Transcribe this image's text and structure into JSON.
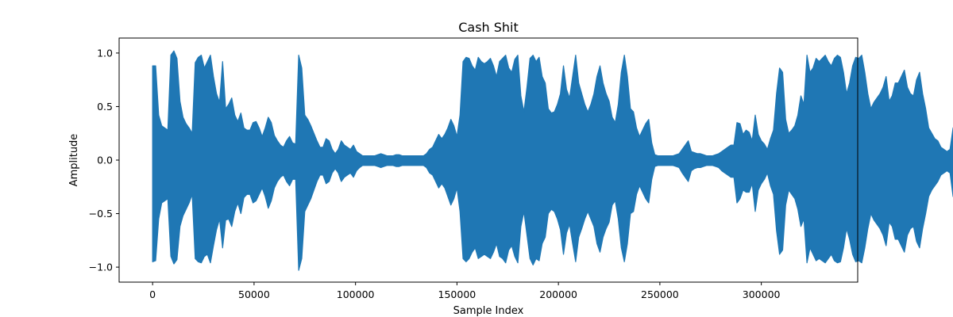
{
  "chart_data": {
    "type": "line",
    "title": "Cash Shit",
    "xlabel": "Sample Index",
    "ylabel": "Amplitude",
    "xlim": [
      -16500,
      347500
    ],
    "ylim": [
      -1.14,
      1.14
    ],
    "xticks": [
      0,
      50000,
      100000,
      150000,
      200000,
      250000,
      300000
    ],
    "xtick_labels": [
      "0",
      "50000",
      "100000",
      "150000",
      "200000",
      "250000",
      "300000"
    ],
    "yticks": [
      -1.0,
      -0.5,
      0.0,
      0.5,
      1.0
    ],
    "ytick_labels": [
      "−1.0",
      "−0.5",
      "0.0",
      "0.5",
      "1.0"
    ],
    "grid": false,
    "legend": "none",
    "series": [
      {
        "color": "#1f77b4",
        "x_start": 0,
        "x_step": 1500,
        "max": [
          0.88,
          0.88,
          0.42,
          0.32,
          0.3,
          0.28,
          0.98,
          1.02,
          0.95,
          0.55,
          0.4,
          0.34,
          0.3,
          0.25,
          0.91,
          0.96,
          0.98,
          0.86,
          0.92,
          0.98,
          0.78,
          0.62,
          0.54,
          0.92,
          0.48,
          0.52,
          0.58,
          0.42,
          0.36,
          0.44,
          0.3,
          0.28,
          0.28,
          0.35,
          0.36,
          0.3,
          0.22,
          0.3,
          0.4,
          0.35,
          0.23,
          0.18,
          0.14,
          0.12,
          0.18,
          0.22,
          0.16,
          0.15,
          0.98,
          0.86,
          0.42,
          0.38,
          0.32,
          0.25,
          0.18,
          0.12,
          0.12,
          0.2,
          0.18,
          0.1,
          0.06,
          0.1,
          0.18,
          0.14,
          0.12,
          0.1,
          0.14,
          0.08,
          0.06,
          0.04,
          0.04,
          0.04,
          0.04,
          0.04,
          0.05,
          0.06,
          0.05,
          0.04,
          0.04,
          0.04,
          0.05,
          0.05,
          0.04,
          0.04,
          0.04,
          0.04,
          0.04,
          0.04,
          0.04,
          0.04,
          0.06,
          0.1,
          0.12,
          0.18,
          0.24,
          0.2,
          0.24,
          0.3,
          0.38,
          0.32,
          0.22,
          0.42,
          0.92,
          0.96,
          0.95,
          0.88,
          0.84,
          0.96,
          0.92,
          0.9,
          0.92,
          0.95,
          0.88,
          0.78,
          0.92,
          0.95,
          0.98,
          0.86,
          0.82,
          0.94,
          0.98,
          0.6,
          0.45,
          0.68,
          0.95,
          0.98,
          0.92,
          0.96,
          0.78,
          0.72,
          0.48,
          0.44,
          0.45,
          0.52,
          0.62,
          0.88,
          0.66,
          0.58,
          0.78,
          0.98,
          0.72,
          0.62,
          0.52,
          0.45,
          0.52,
          0.62,
          0.78,
          0.88,
          0.72,
          0.62,
          0.55,
          0.4,
          0.35,
          0.52,
          0.82,
          0.98,
          0.78,
          0.48,
          0.45,
          0.3,
          0.22,
          0.28,
          0.34,
          0.38,
          0.16,
          0.05,
          0.04,
          0.04,
          0.04,
          0.04,
          0.04,
          0.04,
          0.05,
          0.06,
          0.1,
          0.14,
          0.18,
          0.08,
          0.07,
          0.06,
          0.06,
          0.05,
          0.04,
          0.04,
          0.04,
          0.05,
          0.06,
          0.08,
          0.1,
          0.12,
          0.14,
          0.14,
          0.35,
          0.34,
          0.24,
          0.28,
          0.26,
          0.18,
          0.42,
          0.24,
          0.18,
          0.15,
          0.1,
          0.2,
          0.28,
          0.62,
          0.86,
          0.82,
          0.38,
          0.25,
          0.28,
          0.32,
          0.42,
          0.6,
          0.52,
          0.98,
          0.82,
          0.86,
          0.95,
          0.92,
          0.95,
          0.98,
          0.92,
          0.88,
          0.95,
          0.98,
          0.96,
          0.82,
          0.62,
          0.72,
          0.88,
          0.96,
          0.95,
          0.98,
          0.82,
          0.62,
          0.48,
          0.54,
          0.58,
          0.62,
          0.68,
          0.78,
          0.55,
          0.6,
          0.72,
          0.72,
          0.78,
          0.84,
          0.68,
          0.62,
          0.6,
          0.75,
          0.82,
          0.62,
          0.48,
          0.3,
          0.25,
          0.2,
          0.18,
          0.12,
          0.1,
          0.08,
          0.1,
          0.3,
          0.34,
          0.38,
          0.2,
          0.12,
          0.1,
          0.06,
          0.06,
          0.08,
          0.12,
          0.14,
          0.16,
          0.18,
          0.22,
          0.36,
          0.42,
          0.75,
          0.98,
          0.16,
          0.1,
          0.07,
          0.06,
          0.28,
          0.62,
          0.72,
          0.94,
          0.3,
          0.2,
          0.26,
          0.3,
          0.36,
          0.42,
          0.52,
          0.58,
          0.65,
          1.01,
          0.98,
          0.92,
          0.82,
          0.86,
          0.92,
          0.96,
          0.95,
          0.98,
          0.88,
          0.86,
          0.92,
          0.95,
          0.7,
          0.62,
          0.56,
          0.48,
          0.4,
          0.42,
          0.5,
          0.58,
          0.62,
          0.64,
          0.7,
          0.62,
          0.72,
          0.82,
          0.62,
          0.58,
          0.55,
          0.48,
          0.45,
          0.42,
          0.4,
          0.36,
          0.38,
          0.4,
          0.3,
          0.42,
          0.58,
          0.8,
          0.92,
          0.82,
          0.6,
          0.48,
          0.4,
          0.34,
          0.4,
          0.46,
          0.55,
          0.82,
          0.98,
          0.94,
          0.82,
          0.62,
          0.42,
          0.7,
          0.76,
          0.82,
          0.9,
          0.84,
          0.92,
          0.98,
          0.78,
          0.72,
          0.82,
          0.86,
          0.92,
          0.95,
          0.98,
          1.0,
          0.92,
          0.86,
          0.85,
          0.92,
          0.95,
          0.98,
          1.0,
          0.96,
          0.92,
          0.86,
          0.8,
          0.86,
          0.92,
          0.96,
          0.98,
          1.0,
          0.98,
          0.95,
          0.92,
          0.9,
          0.95,
          0.98,
          0.99,
          0.98,
          0.95,
          0.92,
          0.88,
          0.95,
          0.98,
          0.99,
          0.96,
          0.92,
          0.88,
          0.82,
          0.76,
          0.7,
          0.62,
          0.55,
          0.48,
          0.42,
          0.4
        ],
        "min": [
          -0.95,
          -0.94,
          -0.55,
          -0.4,
          -0.38,
          -0.36,
          -0.9,
          -0.97,
          -0.93,
          -0.62,
          -0.52,
          -0.46,
          -0.4,
          -0.32,
          -0.92,
          -0.95,
          -0.96,
          -0.9,
          -0.88,
          -0.96,
          -0.8,
          -0.65,
          -0.55,
          -0.82,
          -0.56,
          -0.55,
          -0.62,
          -0.48,
          -0.4,
          -0.5,
          -0.35,
          -0.32,
          -0.32,
          -0.4,
          -0.38,
          -0.32,
          -0.26,
          -0.34,
          -0.45,
          -0.38,
          -0.26,
          -0.2,
          -0.16,
          -0.14,
          -0.2,
          -0.24,
          -0.18,
          -0.18,
          -1.03,
          -0.92,
          -0.48,
          -0.42,
          -0.36,
          -0.28,
          -0.2,
          -0.14,
          -0.14,
          -0.22,
          -0.2,
          -0.12,
          -0.08,
          -0.12,
          -0.2,
          -0.16,
          -0.14,
          -0.12,
          -0.16,
          -0.1,
          -0.07,
          -0.05,
          -0.05,
          -0.05,
          -0.05,
          -0.05,
          -0.06,
          -0.07,
          -0.06,
          -0.05,
          -0.05,
          -0.05,
          -0.06,
          -0.06,
          -0.05,
          -0.05,
          -0.05,
          -0.05,
          -0.05,
          -0.05,
          -0.05,
          -0.05,
          -0.07,
          -0.12,
          -0.14,
          -0.2,
          -0.26,
          -0.22,
          -0.26,
          -0.34,
          -0.42,
          -0.36,
          -0.26,
          -0.48,
          -0.92,
          -0.95,
          -0.92,
          -0.86,
          -0.82,
          -0.92,
          -0.9,
          -0.88,
          -0.9,
          -0.92,
          -0.86,
          -0.78,
          -0.9,
          -0.92,
          -0.96,
          -0.84,
          -0.8,
          -0.9,
          -0.96,
          -0.62,
          -0.48,
          -0.7,
          -0.92,
          -0.98,
          -0.92,
          -0.94,
          -0.78,
          -0.72,
          -0.5,
          -0.46,
          -0.48,
          -0.55,
          -0.65,
          -0.88,
          -0.68,
          -0.6,
          -0.78,
          -0.95,
          -0.72,
          -0.64,
          -0.55,
          -0.48,
          -0.55,
          -0.62,
          -0.78,
          -0.86,
          -0.72,
          -0.64,
          -0.58,
          -0.42,
          -0.38,
          -0.55,
          -0.82,
          -0.95,
          -0.78,
          -0.5,
          -0.48,
          -0.32,
          -0.24,
          -0.3,
          -0.36,
          -0.4,
          -0.18,
          -0.06,
          -0.05,
          -0.05,
          -0.05,
          -0.05,
          -0.05,
          -0.05,
          -0.06,
          -0.07,
          -0.12,
          -0.16,
          -0.2,
          -0.1,
          -0.08,
          -0.07,
          -0.07,
          -0.06,
          -0.05,
          -0.05,
          -0.05,
          -0.06,
          -0.07,
          -0.1,
          -0.12,
          -0.14,
          -0.16,
          -0.16,
          -0.4,
          -0.36,
          -0.28,
          -0.3,
          -0.3,
          -0.22,
          -0.48,
          -0.28,
          -0.22,
          -0.18,
          -0.12,
          -0.24,
          -0.32,
          -0.66,
          -0.88,
          -0.84,
          -0.42,
          -0.28,
          -0.32,
          -0.36,
          -0.46,
          -0.62,
          -0.55,
          -0.96,
          -0.82,
          -0.88,
          -0.94,
          -0.92,
          -0.94,
          -0.96,
          -0.92,
          -0.88,
          -0.94,
          -0.96,
          -0.95,
          -0.82,
          -0.64,
          -0.74,
          -0.88,
          -0.95,
          -0.94,
          -0.96,
          -0.82,
          -0.64,
          -0.5,
          -0.56,
          -0.6,
          -0.64,
          -0.7,
          -0.8,
          -0.58,
          -0.62,
          -0.74,
          -0.74,
          -0.8,
          -0.86,
          -0.7,
          -0.64,
          -0.62,
          -0.76,
          -0.82,
          -0.64,
          -0.5,
          -0.34,
          -0.28,
          -0.24,
          -0.2,
          -0.14,
          -0.12,
          -0.1,
          -0.12,
          -0.34,
          -0.38,
          -0.42,
          -0.24,
          -0.14,
          -0.12,
          -0.08,
          -0.08,
          -0.1,
          -0.14,
          -0.16,
          -0.18,
          -0.2,
          -0.26,
          -0.4,
          -0.46,
          -0.76,
          -0.96,
          -0.18,
          -0.12,
          -0.08,
          -0.07,
          -0.32,
          -0.64,
          -0.74,
          -0.92,
          -0.34,
          -0.24,
          -0.3,
          -0.34,
          -0.4,
          -0.46,
          -0.55,
          -0.62,
          -0.68,
          -0.95,
          -0.96,
          -0.92,
          -0.84,
          -0.86,
          -0.92,
          -0.95,
          -0.94,
          -0.96,
          -0.88,
          -0.86,
          -0.92,
          -0.94,
          -0.72,
          -0.64,
          -0.58,
          -0.5,
          -0.42,
          -0.44,
          -0.52,
          -0.6,
          -0.64,
          -0.66,
          -0.72,
          -0.64,
          -0.74,
          -0.84,
          -0.64,
          -0.6,
          -0.58,
          -0.5,
          -0.48,
          -0.44,
          -0.42,
          -0.4,
          -0.42,
          -0.44,
          -0.34,
          -0.46,
          -0.6,
          -0.82,
          -0.92,
          -0.84,
          -0.62,
          -0.5,
          -0.42,
          -0.38,
          -0.44,
          -0.5,
          -0.58,
          -0.84,
          -0.96,
          -0.92,
          -0.84,
          -0.64,
          -0.46,
          -0.72,
          -0.78,
          -0.84,
          -0.9,
          -0.86,
          -0.92,
          -0.96,
          -0.8,
          -0.74,
          -0.84,
          -0.88,
          -0.92,
          -0.94,
          -0.96,
          -0.98,
          -0.92,
          -0.88,
          -0.86,
          -0.92,
          -0.94,
          -0.96,
          -0.98,
          -0.95,
          -0.92,
          -0.88,
          -0.82,
          -0.88,
          -0.92,
          -0.95,
          -0.96,
          -0.98,
          -0.96,
          -0.94,
          -0.92,
          -0.9,
          -0.94,
          -0.96,
          -0.97,
          -0.96,
          -0.94,
          -0.92,
          -0.88,
          -0.94,
          -0.96,
          -0.97,
          -0.95,
          -0.92,
          -0.88,
          -0.84,
          -0.78,
          -0.72,
          -0.65,
          -0.58,
          -0.52,
          -0.46,
          -0.42
        ]
      }
    ]
  }
}
